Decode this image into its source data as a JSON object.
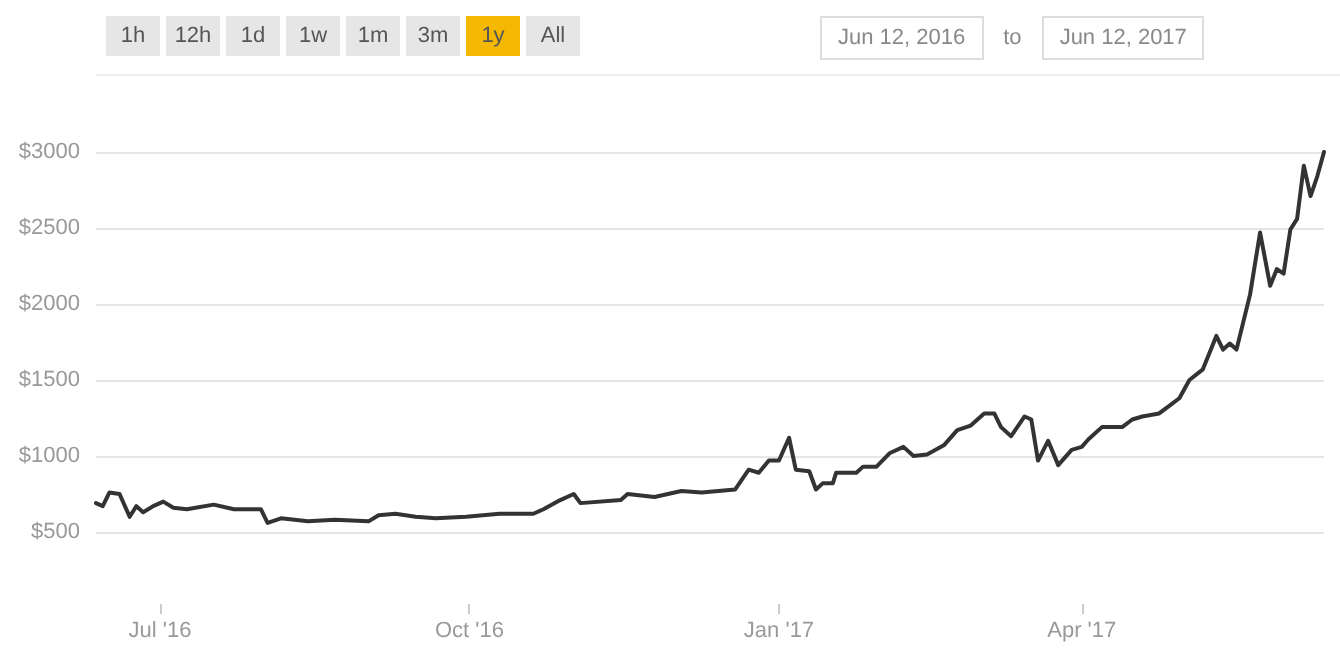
{
  "chart_data": {
    "type": "line",
    "annotations": [
      "1h",
      "12h",
      "1d",
      "1w",
      "1m",
      "3m",
      "1y",
      "All",
      "Jun 12, 2016",
      "to",
      "Jun 12, 2017"
    ],
    "x": [
      "2016-06-12",
      "2016-06-14",
      "2016-06-16",
      "2016-06-19",
      "2016-06-22",
      "2016-06-24",
      "2016-06-26",
      "2016-06-29",
      "2016-07-02",
      "2016-07-05",
      "2016-07-09",
      "2016-07-17",
      "2016-07-23",
      "2016-07-31",
      "2016-08-02",
      "2016-08-06",
      "2016-08-14",
      "2016-08-22",
      "2016-09-01",
      "2016-09-04",
      "2016-09-09",
      "2016-09-15",
      "2016-09-21",
      "2016-09-30",
      "2016-10-10",
      "2016-10-20",
      "2016-10-23",
      "2016-10-28",
      "2016-11-01",
      "2016-11-03",
      "2016-11-15",
      "2016-11-17",
      "2016-11-25",
      "2016-12-03",
      "2016-12-09",
      "2016-12-19",
      "2016-12-23",
      "2016-12-26",
      "2016-12-29",
      "2017-01-01",
      "2017-01-04",
      "2017-01-06",
      "2017-01-10",
      "2017-01-12",
      "2017-01-14",
      "2017-01-17",
      "2017-01-18",
      "2017-01-24",
      "2017-01-26",
      "2017-01-30",
      "2017-02-03",
      "2017-02-07",
      "2017-02-10",
      "2017-02-14",
      "2017-02-19",
      "2017-02-23",
      "2017-02-27",
      "2017-03-03",
      "2017-03-06",
      "2017-03-08",
      "2017-03-11",
      "2017-03-15",
      "2017-03-17",
      "2017-03-19",
      "2017-03-22",
      "2017-03-25",
      "2017-03-29",
      "2017-04-01",
      "2017-04-03",
      "2017-04-07",
      "2017-04-13",
      "2017-04-16",
      "2017-04-19",
      "2017-04-24",
      "2017-04-27",
      "2017-04-30",
      "2017-05-03",
      "2017-05-07",
      "2017-05-11",
      "2017-05-13",
      "2017-05-15",
      "2017-05-17",
      "2017-05-21",
      "2017-05-24",
      "2017-05-27",
      "2017-05-29",
      "2017-05-31",
      "2017-06-02",
      "2017-06-04",
      "2017-06-06",
      "2017-06-08",
      "2017-06-10",
      "2017-06-12"
    ],
    "series": [
      {
        "color": "#333333",
        "values": [
          690,
          670,
          760,
          750,
          600,
          670,
          630,
          670,
          700,
          660,
          650,
          680,
          650,
          650,
          560,
          590,
          570,
          580,
          570,
          610,
          620,
          600,
          590,
          600,
          620,
          620,
          650,
          710,
          750,
          690,
          710,
          750,
          730,
          770,
          760,
          780,
          910,
          890,
          970,
          970,
          1120,
          910,
          900,
          780,
          820,
          820,
          890,
          890,
          930,
          930,
          1020,
          1060,
          1000,
          1010,
          1070,
          1170,
          1200,
          1280,
          1280,
          1190,
          1130,
          1260,
          1240,
          970,
          1100,
          940,
          1040,
          1060,
          1110,
          1190,
          1190,
          1240,
          1260,
          1280,
          1330,
          1380,
          1500,
          1570,
          1790,
          1700,
          1740,
          1700,
          2060,
          2470,
          2120,
          2230,
          2200,
          2490,
          2560,
          2910,
          2710,
          2840,
          3000
        ]
      }
    ],
    "xlim": [
      "2016-06-12",
      "2017-06-12"
    ],
    "xticks": [
      {
        "value": "2016-07-01",
        "label": "Jul '16"
      },
      {
        "value": "2016-10-01",
        "label": "Oct '16"
      },
      {
        "value": "2017-01-01",
        "label": "Jan '17"
      },
      {
        "value": "2017-04-01",
        "label": "Apr '17"
      }
    ],
    "ylim": [
      500,
      3000
    ],
    "yticks": [
      {
        "value": 500,
        "label": "$500"
      },
      {
        "value": 1000,
        "label": "$1000"
      },
      {
        "value": 1500,
        "label": "$1500"
      },
      {
        "value": 2000,
        "label": "$2000"
      },
      {
        "value": 2500,
        "label": "$2500"
      },
      {
        "value": 3000,
        "label": "$3000"
      }
    ],
    "grid": "y",
    "marker": "none",
    "line_style": "solid"
  }
}
